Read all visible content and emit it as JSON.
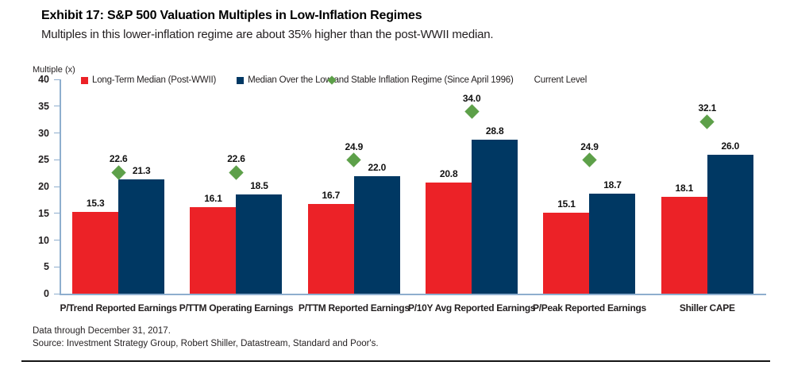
{
  "colors": {
    "red": "#EC2227",
    "navy": "#003863",
    "green": "#5DA049",
    "axis": "#8EAECE",
    "rule": "#141414"
  },
  "footnotes": {
    "line1": "Data through December 31, 2017.",
    "line2": "Source: Investment Strategy Group, Robert Shiller, Datastream, Standard and Poor's."
  },
  "chart_data": {
    "type": "bar",
    "title": "Exhibit 17: S&P 500 Valuation Multiples in Low-Inflation Regimes",
    "subtitle": "Multiples in this lower-inflation regime are about 35% higher than the post-WWII median.",
    "ylabel": "Multiple (x)",
    "xlabel": "",
    "ylim": [
      0,
      40
    ],
    "yticks": [
      0,
      5,
      10,
      15,
      20,
      25,
      30,
      35,
      40
    ],
    "grid": false,
    "legend_position": "top",
    "categories": [
      "P/Trend Reported Earnings",
      "P/TTM Operating Earnings",
      "P/TTM Reported Earnings",
      "P/10Y Avg Reported Earnings",
      "P/Peak Reported Earnings",
      "Shiller CAPE"
    ],
    "series": [
      {
        "name": "Long-Term Median (Post-WWII)",
        "type": "bar",
        "color_key": "red",
        "values": [
          15.3,
          16.1,
          16.7,
          20.8,
          15.1,
          18.1
        ]
      },
      {
        "name": "Median Over the Low and Stable Inflation Regime (Since April 1996)",
        "type": "bar",
        "color_key": "navy",
        "values": [
          21.3,
          18.5,
          22.0,
          28.8,
          18.7,
          26.0
        ]
      },
      {
        "name": "Current Level",
        "type": "point",
        "marker": "diamond",
        "color_key": "green",
        "values": [
          22.6,
          22.6,
          24.9,
          34.0,
          24.9,
          32.1
        ]
      }
    ]
  }
}
